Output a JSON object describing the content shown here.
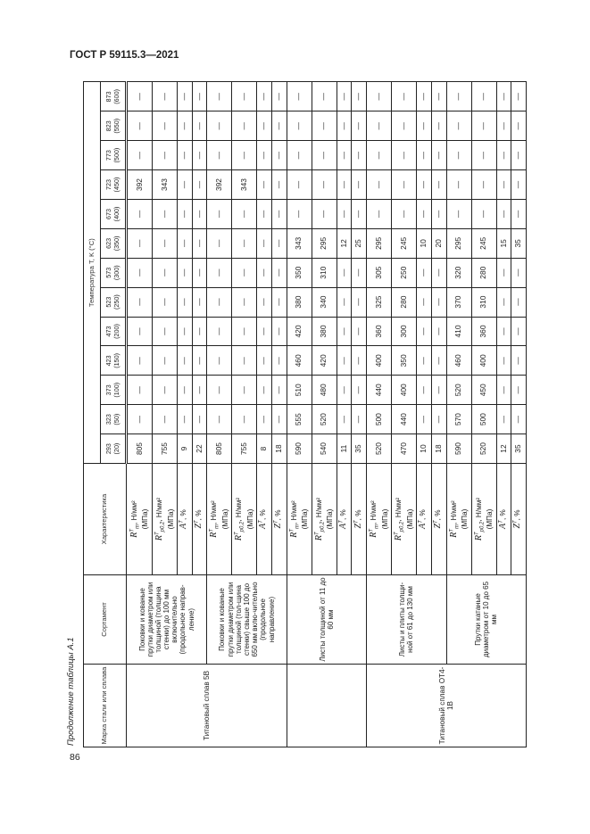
{
  "header": {
    "doc_code": "ГОСТ Р 59115.3—2021",
    "page_number": "86",
    "caption": "Продолжение таблицы А.1"
  },
  "table": {
    "col_grade": "Марка стали или сплава",
    "col_product": "Сортамент",
    "col_char": "Характеристика",
    "col_temp": "Температура T, K (°C)",
    "temps": [
      [
        "293",
        "(20)"
      ],
      [
        "323",
        "(50)"
      ],
      [
        "373",
        "(100)"
      ],
      [
        "423",
        "(150)"
      ],
      [
        "473",
        "(200)"
      ],
      [
        "523",
        "(250)"
      ],
      [
        "573",
        "(300)"
      ],
      [
        "623",
        "(350)"
      ],
      [
        "673",
        "(400)"
      ],
      [
        "723",
        "(450)"
      ],
      [
        "773",
        "(500)"
      ],
      [
        "823",
        "(550)"
      ],
      [
        "873",
        "(600)"
      ]
    ],
    "characteristics": {
      "Rm": {
        "sym": "R",
        "sup": "T",
        "sub": "m",
        "unit": ", Н/мм²",
        "unit2": "(МПа)"
      },
      "Rp": {
        "sym": "R",
        "sup": "T",
        "sub": "p0,2",
        "unit": ", Н/мм²",
        "unit2": "(МПа)"
      },
      "A": {
        "sym": "A",
        "sup": "T",
        "sub": "",
        "unit": ", %",
        "unit2": ""
      },
      "Z": {
        "sym": "Z",
        "sup": "T",
        "sub": "",
        "unit": ", %",
        "unit2": ""
      }
    },
    "grades": [
      {
        "name": "Титановый сплав 5В",
        "rows": 8
      },
      {
        "name": "",
        "rows": 4
      },
      {
        "name": "Титановый сплав ОТ4-1В",
        "rows": 8
      }
    ],
    "products": [
      {
        "name": "Поковки и кованые прутки диаметром или толщиной (толщина стенки) до 100 мм включительно (продольное направ-ление)",
        "rows": 4
      },
      {
        "name": "Поковки и кованые прутки диаметром или толщиной (тол-щина стенки) свыше 100 до 650 мм вклю-чительно (продольное направление)",
        "rows": 4
      },
      {
        "name": "Листы толщиной от 11 до 60 мм",
        "rows": 4
      },
      {
        "name": "Листы и плиты толщи-ной от 61 до 130 мм",
        "rows": 4
      },
      {
        "name": "Прутки катаные диаметром от 10 до 65 мм",
        "rows": 4
      }
    ],
    "rows": [
      {
        "char": "Rm",
        "values": [
          "805",
          "—",
          "—",
          "—",
          "—",
          "—",
          "—",
          "—",
          "—",
          "392",
          "—",
          "—",
          "—"
        ]
      },
      {
        "char": "Rp",
        "values": [
          "755",
          "—",
          "—",
          "—",
          "—",
          "—",
          "—",
          "—",
          "—",
          "343",
          "—",
          "—",
          "—"
        ]
      },
      {
        "char": "A",
        "values": [
          "9",
          "—",
          "—",
          "—",
          "—",
          "—",
          "—",
          "—",
          "—",
          "—",
          "—",
          "—",
          "—"
        ]
      },
      {
        "char": "Z",
        "values": [
          "22",
          "—",
          "—",
          "—",
          "—",
          "—",
          "—",
          "—",
          "—",
          "—",
          "—",
          "—",
          "—"
        ]
      },
      {
        "char": "Rm",
        "values": [
          "805",
          "—",
          "—",
          "—",
          "—",
          "—",
          "—",
          "—",
          "—",
          "392",
          "—",
          "—",
          "—"
        ]
      },
      {
        "char": "Rp",
        "values": [
          "755",
          "—",
          "—",
          "—",
          "—",
          "—",
          "—",
          "—",
          "—",
          "343",
          "—",
          "—",
          "—"
        ]
      },
      {
        "char": "A",
        "values": [
          "8",
          "—",
          "—",
          "—",
          "—",
          "—",
          "—",
          "—",
          "—",
          "—",
          "—",
          "—",
          "—"
        ]
      },
      {
        "char": "Z",
        "values": [
          "18",
          "—",
          "—",
          "—",
          "—",
          "—",
          "—",
          "—",
          "—",
          "—",
          "—",
          "—",
          "—"
        ]
      },
      {
        "char": "Rm",
        "values": [
          "590",
          "555",
          "510",
          "460",
          "420",
          "380",
          "350",
          "343",
          "—",
          "—",
          "—",
          "—",
          "—"
        ]
      },
      {
        "char": "Rp",
        "values": [
          "540",
          "520",
          "480",
          "420",
          "380",
          "340",
          "310",
          "295",
          "—",
          "—",
          "—",
          "—",
          "—"
        ]
      },
      {
        "char": "A",
        "values": [
          "11",
          "—",
          "—",
          "—",
          "—",
          "—",
          "—",
          "12",
          "—",
          "—",
          "—",
          "—",
          "—"
        ]
      },
      {
        "char": "Z",
        "values": [
          "35",
          "—",
          "—",
          "—",
          "—",
          "—",
          "—",
          "25",
          "—",
          "—",
          "—",
          "—",
          "—"
        ]
      },
      {
        "char": "Rm",
        "values": [
          "520",
          "500",
          "440",
          "400",
          "360",
          "325",
          "305",
          "295",
          "—",
          "—",
          "—",
          "—",
          "—"
        ]
      },
      {
        "char": "Rp",
        "values": [
          "470",
          "440",
          "400",
          "350",
          "300",
          "280",
          "250",
          "245",
          "—",
          "—",
          "—",
          "—",
          "—"
        ]
      },
      {
        "char": "A",
        "values": [
          "10",
          "—",
          "—",
          "—",
          "—",
          "—",
          "—",
          "10",
          "—",
          "—",
          "—",
          "—",
          "—"
        ]
      },
      {
        "char": "Z",
        "values": [
          "18",
          "—",
          "—",
          "—",
          "—",
          "—",
          "—",
          "20",
          "—",
          "—",
          "—",
          "—",
          "—"
        ]
      },
      {
        "char": "Rm",
        "values": [
          "590",
          "570",
          "520",
          "460",
          "410",
          "370",
          "320",
          "295",
          "—",
          "—",
          "—",
          "—",
          "—"
        ]
      },
      {
        "char": "Rp",
        "values": [
          "520",
          "500",
          "450",
          "400",
          "360",
          "310",
          "280",
          "245",
          "—",
          "—",
          "—",
          "—",
          "—"
        ]
      },
      {
        "char": "A",
        "values": [
          "12",
          "—",
          "—",
          "—",
          "—",
          "—",
          "—",
          "15",
          "—",
          "—",
          "—",
          "—",
          "—"
        ]
      },
      {
        "char": "Z",
        "values": [
          "35",
          "—",
          "—",
          "—",
          "—",
          "—",
          "—",
          "35",
          "—",
          "—",
          "—",
          "—",
          "—"
        ]
      }
    ]
  }
}
